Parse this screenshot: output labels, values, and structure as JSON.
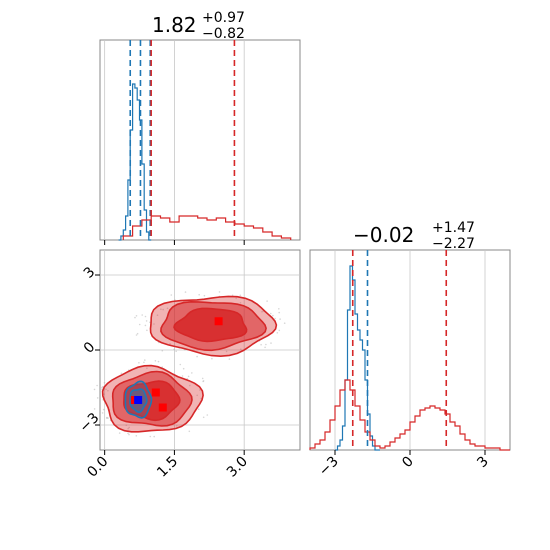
{
  "chart_data": [
    {
      "type": "histogram",
      "panel": "top-left marginal (parameter 1)",
      "title": {
        "main": "1.82",
        "plus": "+0.97",
        "minus": "−0.82"
      },
      "xlim": [
        -0.1,
        4.2
      ],
      "ylim": [
        0,
        1.0
      ],
      "grid": true,
      "series": [
        {
          "color": "#1f77b4",
          "bin_edges": [
            0.3,
            0.35,
            0.4,
            0.45,
            0.5,
            0.55,
            0.6,
            0.65,
            0.7,
            0.75,
            0.8,
            0.85,
            0.9,
            0.95,
            1.0
          ],
          "heights": [
            0.0,
            0.02,
            0.05,
            0.12,
            0.3,
            0.55,
            0.78,
            0.76,
            0.7,
            0.6,
            0.38,
            0.15,
            0.04,
            0.0
          ],
          "quantile_lines": [
            0.55,
            0.77,
            0.98
          ]
        },
        {
          "color": "#d62728",
          "bin_edges": [
            0.4,
            0.6,
            0.8,
            1.0,
            1.2,
            1.4,
            1.6,
            1.8,
            2.0,
            2.2,
            2.4,
            2.6,
            2.8,
            3.0,
            3.2,
            3.4,
            3.6,
            3.8,
            4.0
          ],
          "heights": [
            0.02,
            0.07,
            0.1,
            0.12,
            0.11,
            0.09,
            0.12,
            0.12,
            0.11,
            0.1,
            0.11,
            0.09,
            0.08,
            0.07,
            0.06,
            0.04,
            0.02,
            0.01
          ],
          "quantile_lines": [
            1.0,
            2.79
          ]
        }
      ]
    },
    {
      "type": "contour",
      "panel": "bottom-left joint (parameter 1 vs parameter 2)",
      "xlim": [
        -0.1,
        4.2
      ],
      "ylim": [
        -4.0,
        4.0
      ],
      "x_ticks": [
        "0.0",
        "1.5",
        "3.0"
      ],
      "x_tick_values": [
        0.0,
        1.5,
        3.0
      ],
      "y_ticks": [
        "−3",
        "0",
        "3"
      ],
      "y_tick_values": [
        -3,
        0,
        3
      ],
      "grid": true,
      "series": [
        {
          "color": "#d62728",
          "modes": [
            {
              "center": [
                1.0,
                -2.0
              ],
              "rx": [
                1.05,
                0.85,
                0.6
              ],
              "ry": [
                1.3,
                1.05,
                0.75
              ]
            },
            {
              "center": [
                2.3,
                1.0
              ],
              "rx": [
                1.35,
                1.1,
                0.75
              ],
              "ry": [
                1.15,
                0.95,
                0.65
              ]
            }
          ],
          "markers": [
            [
              0.65,
              -2.0
            ],
            [
              1.1,
              -1.7
            ],
            [
              1.25,
              -2.3
            ],
            [
              2.45,
              1.15
            ]
          ],
          "marker_color": "#ff0000"
        },
        {
          "color": "#1f77b4",
          "modes": [
            {
              "center": [
                0.72,
                -2.0
              ],
              "rx": [
                0.28,
                0.18
              ],
              "ry": [
                0.7,
                0.45
              ]
            }
          ],
          "markers": [
            [
              0.72,
              -2.0
            ]
          ],
          "marker_color": "#0000ff"
        }
      ]
    },
    {
      "type": "histogram",
      "panel": "bottom-right marginal (parameter 2)",
      "title": {
        "main": "−0.02",
        "plus": "+1.47",
        "minus": "−2.27"
      },
      "xlim": [
        -4.0,
        4.0
      ],
      "ylim": [
        0,
        1.0
      ],
      "x_ticks": [
        "−3",
        "0",
        "3"
      ],
      "x_tick_values": [
        -3,
        0,
        3
      ],
      "grid": true,
      "series": [
        {
          "color": "#1f77b4",
          "bin_edges": [
            -3.0,
            -2.9,
            -2.8,
            -2.7,
            -2.6,
            -2.5,
            -2.4,
            -2.3,
            -2.2,
            -2.1,
            -2.0,
            -1.9,
            -1.8,
            -1.7,
            -1.6,
            -1.5,
            -1.4,
            -1.3,
            -1.2
          ],
          "heights": [
            0.0,
            0.02,
            0.05,
            0.12,
            0.35,
            0.7,
            0.92,
            0.85,
            0.68,
            0.6,
            0.55,
            0.5,
            0.35,
            0.18,
            0.07,
            0.02,
            0.0,
            0.0
          ],
          "quantile_lines": [
            -1.7
          ]
        },
        {
          "color": "#d62728",
          "bin_edges": [
            -4.0,
            -3.8,
            -3.6,
            -3.4,
            -3.2,
            -3.0,
            -2.8,
            -2.6,
            -2.4,
            -2.2,
            -2.0,
            -1.8,
            -1.6,
            -1.4,
            -1.2,
            -1.0,
            -0.8,
            -0.6,
            -0.4,
            -0.2,
            0.0,
            0.2,
            0.4,
            0.6,
            0.8,
            1.0,
            1.2,
            1.4,
            1.6,
            1.8,
            2.0,
            2.2,
            2.4,
            2.6,
            2.8,
            3.0,
            3.2,
            3.4,
            3.6,
            3.8,
            4.0
          ],
          "heights": [
            0.01,
            0.03,
            0.05,
            0.09,
            0.15,
            0.22,
            0.3,
            0.35,
            0.3,
            0.22,
            0.15,
            0.09,
            0.05,
            0.02,
            0.01,
            0.02,
            0.04,
            0.06,
            0.08,
            0.1,
            0.14,
            0.17,
            0.2,
            0.21,
            0.22,
            0.21,
            0.2,
            0.18,
            0.14,
            0.12,
            0.08,
            0.05,
            0.03,
            0.02,
            0.02,
            0.01,
            0.01,
            0.01,
            0.0,
            0.0
          ],
          "quantile_lines": [
            -2.29,
            1.45
          ]
        }
      ]
    }
  ]
}
